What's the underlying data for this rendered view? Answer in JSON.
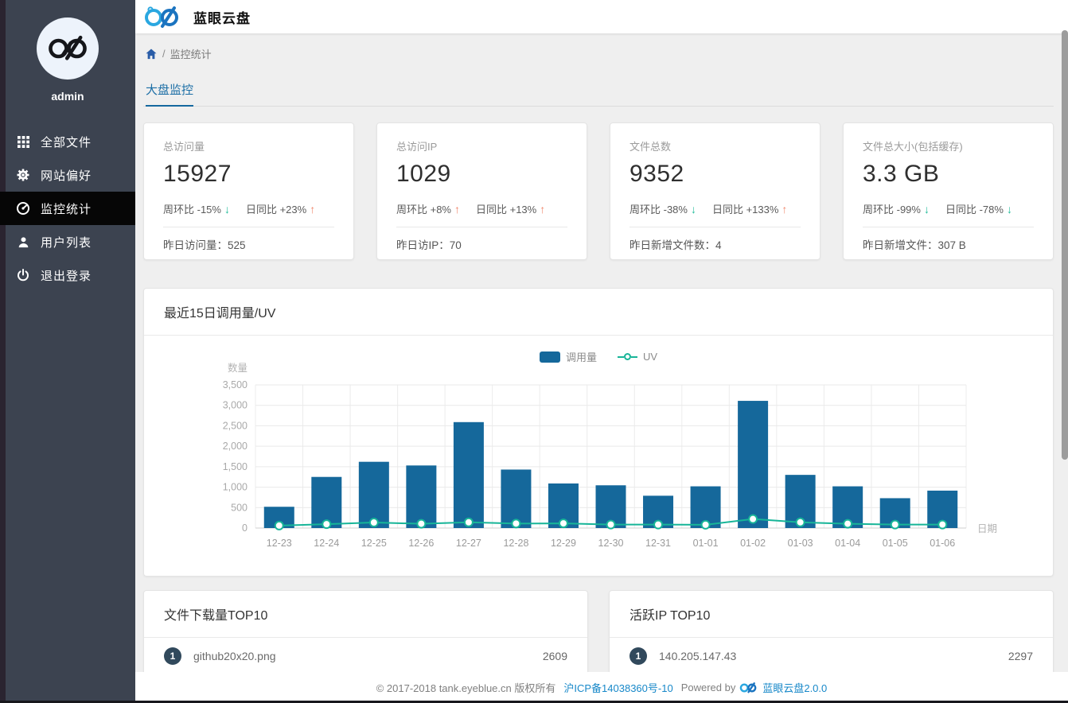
{
  "header": {
    "title": "蓝眼云盘"
  },
  "sidebar": {
    "username": "admin",
    "items": [
      {
        "label": "全部文件",
        "icon": "grid-icon",
        "active": false
      },
      {
        "label": "网站偏好",
        "icon": "gear-icon",
        "active": false
      },
      {
        "label": "监控统计",
        "icon": "dashboard-icon",
        "active": true
      },
      {
        "label": "用户列表",
        "icon": "user-icon",
        "active": false
      },
      {
        "label": "退出登录",
        "icon": "power-icon",
        "active": false
      }
    ]
  },
  "breadcrumb": {
    "separator": "/",
    "current": "监控统计"
  },
  "tabs": [
    {
      "label": "大盘监控",
      "active": true
    }
  ],
  "stat_cards": [
    {
      "label": "总访问量",
      "value": "15927",
      "trends": [
        {
          "label": "周环比 -15%",
          "dir": "down"
        },
        {
          "label": "日同比 +23%",
          "dir": "up"
        }
      ],
      "footer_label": "昨日访问量：",
      "footer_value": "525"
    },
    {
      "label": "总访问IP",
      "value": "1029",
      "trends": [
        {
          "label": "周环比 +8%",
          "dir": "up"
        },
        {
          "label": "日同比 +13%",
          "dir": "up"
        }
      ],
      "footer_label": "昨日访IP：",
      "footer_value": "70"
    },
    {
      "label": "文件总数",
      "value": "9352",
      "trends": [
        {
          "label": "周环比 -38%",
          "dir": "down"
        },
        {
          "label": "日同比 +133%",
          "dir": "up"
        }
      ],
      "footer_label": "昨日新增文件数：",
      "footer_value": "4"
    },
    {
      "label": "文件总大小(包括缓存)",
      "value": "3.3 GB",
      "trends": [
        {
          "label": "周环比 -99%",
          "dir": "down"
        },
        {
          "label": "日同比 -78%",
          "dir": "down"
        }
      ],
      "footer_label": "昨日新增文件：",
      "footer_value": "307 B"
    }
  ],
  "chart_card": {
    "title": "最近15日调用量/UV"
  },
  "chart_data": {
    "type": "bar",
    "title": "最近15日调用量/UV",
    "categories": [
      "12-23",
      "12-24",
      "12-25",
      "12-26",
      "12-27",
      "12-28",
      "12-29",
      "12-30",
      "12-31",
      "01-01",
      "01-02",
      "01-03",
      "01-04",
      "01-05",
      "01-06"
    ],
    "series": [
      {
        "name": "调用量",
        "type": "bar",
        "color": "#15689b",
        "values": [
          520,
          1250,
          1620,
          1530,
          2590,
          1430,
          1090,
          1045,
          790,
          1020,
          3110,
          1300,
          1020,
          730,
          915
        ]
      },
      {
        "name": "UV",
        "type": "line",
        "color": "#17b598",
        "values": [
          60,
          95,
          135,
          105,
          140,
          110,
          115,
          85,
          85,
          80,
          220,
          140,
          105,
          85,
          85
        ]
      }
    ],
    "xlabel": "日期",
    "ylabel": "数量",
    "ylim": [
      0,
      3500
    ],
    "ytick_step": 500,
    "yticks": [
      "0",
      "500",
      "1,000",
      "1,500",
      "2,000",
      "2,500",
      "3,000",
      "3,500"
    ],
    "grid": true,
    "legend_position": "top-center"
  },
  "top_lists": [
    {
      "title": "文件下载量TOP10",
      "rows": [
        {
          "rank": "1",
          "name": "github20x20.png",
          "value": "2609"
        }
      ]
    },
    {
      "title": "活跃IP TOP10",
      "rows": [
        {
          "rank": "1",
          "name": "140.205.147.43",
          "value": "2297"
        }
      ]
    }
  ],
  "footer": {
    "copyright": "© 2017-2018 tank.eyeblue.cn 版权所有",
    "icp_link": "沪ICP备14038360号-10",
    "powered_by": "Powered by",
    "product_link": "蓝眼云盘2.0.0"
  },
  "colors": {
    "sidebar_bg": "#3c4350",
    "active_item_bg": "#060606",
    "accent_blue": "#1a6da5",
    "bar_blue": "#15689b",
    "uv_green": "#17b598",
    "trend_up": "#f0876c",
    "trend_down": "#24bd9b",
    "link_blue": "#1788c9"
  }
}
